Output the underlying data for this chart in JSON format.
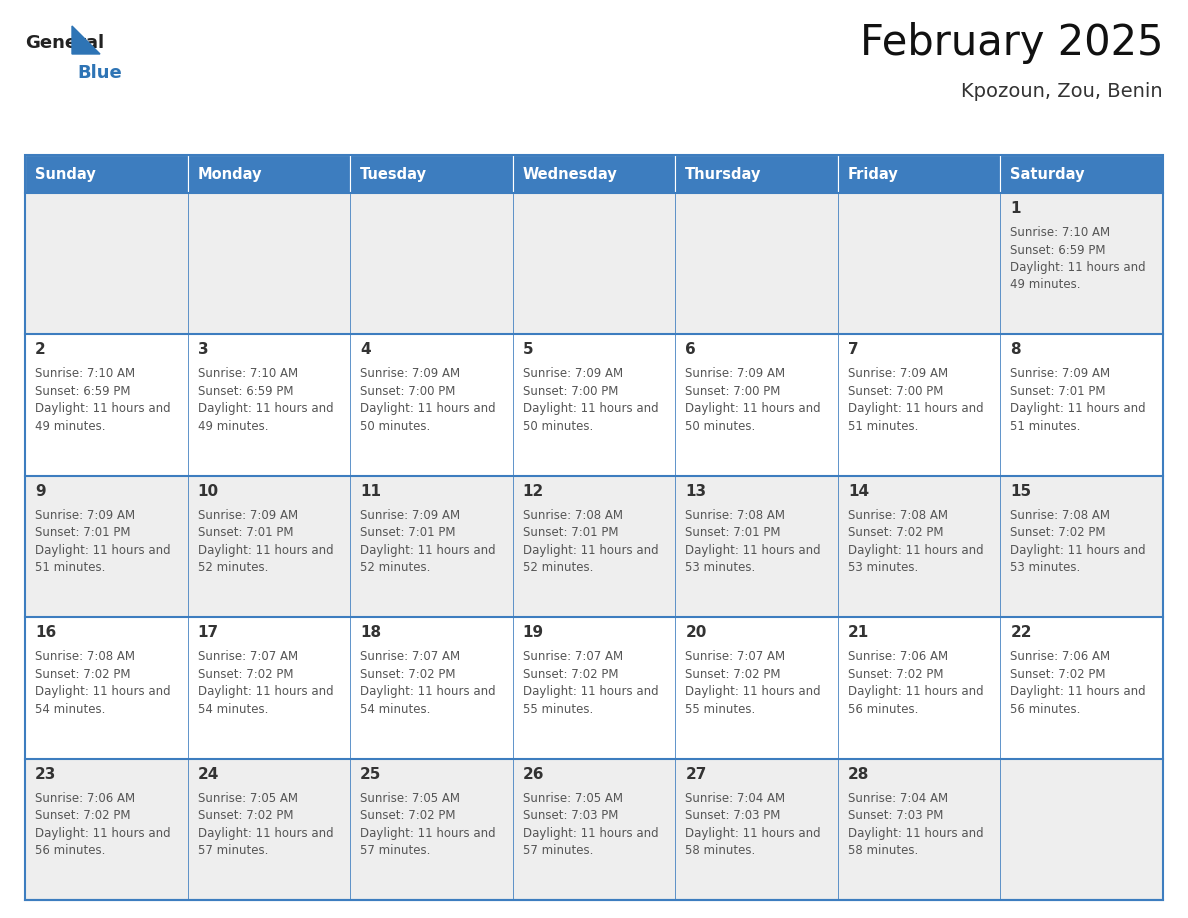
{
  "title": "February 2025",
  "subtitle": "Kpozoun, Zou, Benin",
  "days_of_week": [
    "Sunday",
    "Monday",
    "Tuesday",
    "Wednesday",
    "Thursday",
    "Friday",
    "Saturday"
  ],
  "header_bg": "#3d7dbf",
  "header_text": "#FFFFFF",
  "cell_bg_even": "#EEEEEE",
  "cell_bg_odd": "#FFFFFF",
  "cell_border": "#3d7dbf",
  "day_number_color": "#333333",
  "info_text_color": "#555555",
  "title_color": "#111111",
  "subtitle_color": "#333333",
  "logo_general_color": "#222222",
  "logo_blue_color": "#2E74B5",
  "calendar_data": [
    {
      "day": 1,
      "col": 6,
      "row": 0,
      "sunrise": "7:10 AM",
      "sunset": "6:59 PM",
      "daylight": "11 hours and 49 minutes."
    },
    {
      "day": 2,
      "col": 0,
      "row": 1,
      "sunrise": "7:10 AM",
      "sunset": "6:59 PM",
      "daylight": "11 hours and 49 minutes."
    },
    {
      "day": 3,
      "col": 1,
      "row": 1,
      "sunrise": "7:10 AM",
      "sunset": "6:59 PM",
      "daylight": "11 hours and 49 minutes."
    },
    {
      "day": 4,
      "col": 2,
      "row": 1,
      "sunrise": "7:09 AM",
      "sunset": "7:00 PM",
      "daylight": "11 hours and 50 minutes."
    },
    {
      "day": 5,
      "col": 3,
      "row": 1,
      "sunrise": "7:09 AM",
      "sunset": "7:00 PM",
      "daylight": "11 hours and 50 minutes."
    },
    {
      "day": 6,
      "col": 4,
      "row": 1,
      "sunrise": "7:09 AM",
      "sunset": "7:00 PM",
      "daylight": "11 hours and 50 minutes."
    },
    {
      "day": 7,
      "col": 5,
      "row": 1,
      "sunrise": "7:09 AM",
      "sunset": "7:00 PM",
      "daylight": "11 hours and 51 minutes."
    },
    {
      "day": 8,
      "col": 6,
      "row": 1,
      "sunrise": "7:09 AM",
      "sunset": "7:01 PM",
      "daylight": "11 hours and 51 minutes."
    },
    {
      "day": 9,
      "col": 0,
      "row": 2,
      "sunrise": "7:09 AM",
      "sunset": "7:01 PM",
      "daylight": "11 hours and 51 minutes."
    },
    {
      "day": 10,
      "col": 1,
      "row": 2,
      "sunrise": "7:09 AM",
      "sunset": "7:01 PM",
      "daylight": "11 hours and 52 minutes."
    },
    {
      "day": 11,
      "col": 2,
      "row": 2,
      "sunrise": "7:09 AM",
      "sunset": "7:01 PM",
      "daylight": "11 hours and 52 minutes."
    },
    {
      "day": 12,
      "col": 3,
      "row": 2,
      "sunrise": "7:08 AM",
      "sunset": "7:01 PM",
      "daylight": "11 hours and 52 minutes."
    },
    {
      "day": 13,
      "col": 4,
      "row": 2,
      "sunrise": "7:08 AM",
      "sunset": "7:01 PM",
      "daylight": "11 hours and 53 minutes."
    },
    {
      "day": 14,
      "col": 5,
      "row": 2,
      "sunrise": "7:08 AM",
      "sunset": "7:02 PM",
      "daylight": "11 hours and 53 minutes."
    },
    {
      "day": 15,
      "col": 6,
      "row": 2,
      "sunrise": "7:08 AM",
      "sunset": "7:02 PM",
      "daylight": "11 hours and 53 minutes."
    },
    {
      "day": 16,
      "col": 0,
      "row": 3,
      "sunrise": "7:08 AM",
      "sunset": "7:02 PM",
      "daylight": "11 hours and 54 minutes."
    },
    {
      "day": 17,
      "col": 1,
      "row": 3,
      "sunrise": "7:07 AM",
      "sunset": "7:02 PM",
      "daylight": "11 hours and 54 minutes."
    },
    {
      "day": 18,
      "col": 2,
      "row": 3,
      "sunrise": "7:07 AM",
      "sunset": "7:02 PM",
      "daylight": "11 hours and 54 minutes."
    },
    {
      "day": 19,
      "col": 3,
      "row": 3,
      "sunrise": "7:07 AM",
      "sunset": "7:02 PM",
      "daylight": "11 hours and 55 minutes."
    },
    {
      "day": 20,
      "col": 4,
      "row": 3,
      "sunrise": "7:07 AM",
      "sunset": "7:02 PM",
      "daylight": "11 hours and 55 minutes."
    },
    {
      "day": 21,
      "col": 5,
      "row": 3,
      "sunrise": "7:06 AM",
      "sunset": "7:02 PM",
      "daylight": "11 hours and 56 minutes."
    },
    {
      "day": 22,
      "col": 6,
      "row": 3,
      "sunrise": "7:06 AM",
      "sunset": "7:02 PM",
      "daylight": "11 hours and 56 minutes."
    },
    {
      "day": 23,
      "col": 0,
      "row": 4,
      "sunrise": "7:06 AM",
      "sunset": "7:02 PM",
      "daylight": "11 hours and 56 minutes."
    },
    {
      "day": 24,
      "col": 1,
      "row": 4,
      "sunrise": "7:05 AM",
      "sunset": "7:02 PM",
      "daylight": "11 hours and 57 minutes."
    },
    {
      "day": 25,
      "col": 2,
      "row": 4,
      "sunrise": "7:05 AM",
      "sunset": "7:02 PM",
      "daylight": "11 hours and 57 minutes."
    },
    {
      "day": 26,
      "col": 3,
      "row": 4,
      "sunrise": "7:05 AM",
      "sunset": "7:03 PM",
      "daylight": "11 hours and 57 minutes."
    },
    {
      "day": 27,
      "col": 4,
      "row": 4,
      "sunrise": "7:04 AM",
      "sunset": "7:03 PM",
      "daylight": "11 hours and 58 minutes."
    },
    {
      "day": 28,
      "col": 5,
      "row": 4,
      "sunrise": "7:04 AM",
      "sunset": "7:03 PM",
      "daylight": "11 hours and 58 minutes."
    }
  ]
}
